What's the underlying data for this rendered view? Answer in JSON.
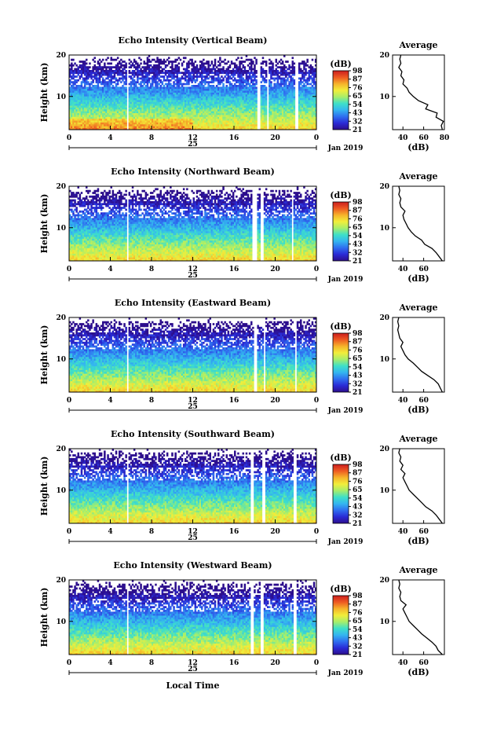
{
  "chart_data": [
    {
      "type": "heatmap",
      "title": "Echo Intensity (Vertical Beam)",
      "ylabel": "Height (km)",
      "xlabel": "",
      "xticks": [
        "0",
        "4",
        "8",
        "12",
        "16",
        "20",
        "0"
      ],
      "yticks": [
        "10",
        "20"
      ],
      "ylim": [
        2,
        20
      ],
      "xlim": [
        0,
        24
      ],
      "date_label": "25",
      "month_label": "Jan 2019",
      "colorbar": {
        "unit": "(dB)",
        "ticks": [
          "21",
          "32",
          "43",
          "54",
          "65",
          "76",
          "87",
          "98"
        ],
        "vmin": 21,
        "vmax": 98
      },
      "gaps_hours": [
        [
          5.6,
          5.8
        ],
        [
          18.3,
          18.6
        ],
        [
          19.2,
          19.4
        ],
        [
          21.9,
          22.2
        ]
      ],
      "average": {
        "title": "Average",
        "xlabel": "(dB)",
        "xticks": [
          "40",
          "60",
          "80"
        ],
        "xlim": [
          30,
          80
        ],
        "yticks": [
          "10",
          "20"
        ],
        "profile": [
          [
            78,
            2
          ],
          [
            77,
            3
          ],
          [
            79,
            4
          ],
          [
            72,
            5
          ],
          [
            73,
            6
          ],
          [
            62,
            7
          ],
          [
            64,
            8
          ],
          [
            55,
            9
          ],
          [
            50,
            10
          ],
          [
            46,
            11
          ],
          [
            44,
            12
          ],
          [
            40,
            13
          ],
          [
            41,
            14
          ],
          [
            38,
            15
          ],
          [
            39,
            16
          ],
          [
            36,
            17
          ],
          [
            38,
            18
          ],
          [
            37,
            19
          ],
          [
            38,
            20
          ]
        ]
      }
    },
    {
      "type": "heatmap",
      "title": "Echo Intensity (Northward Beam)",
      "ylabel": "Height (km)",
      "xlabel": "",
      "xticks": [
        "0",
        "4",
        "8",
        "12",
        "16",
        "20",
        "0"
      ],
      "yticks": [
        "10",
        "20"
      ],
      "ylim": [
        2,
        20
      ],
      "xlim": [
        0,
        24
      ],
      "date_label": "25",
      "month_label": "Jan 2019",
      "colorbar": {
        "unit": "(dB)",
        "ticks": [
          "21",
          "32",
          "43",
          "54",
          "65",
          "76",
          "87",
          "98"
        ],
        "vmin": 21,
        "vmax": 98
      },
      "gaps_hours": [
        [
          5.6,
          5.8
        ],
        [
          17.8,
          18.2
        ],
        [
          18.6,
          18.8
        ],
        [
          21.6,
          21.8
        ]
      ],
      "average": {
        "title": "Average",
        "xlabel": "(dB)",
        "xticks": [
          "40",
          "60"
        ],
        "xlim": [
          30,
          80
        ],
        "yticks": [
          "10",
          "20"
        ],
        "profile": [
          [
            78,
            2
          ],
          [
            75,
            3
          ],
          [
            72,
            4
          ],
          [
            68,
            5
          ],
          [
            61,
            6
          ],
          [
            58,
            7
          ],
          [
            52,
            8
          ],
          [
            48,
            9
          ],
          [
            45,
            10
          ],
          [
            43,
            11
          ],
          [
            41,
            12
          ],
          [
            40,
            13
          ],
          [
            42,
            14
          ],
          [
            38,
            15
          ],
          [
            37,
            16
          ],
          [
            38,
            17
          ],
          [
            36,
            18
          ],
          [
            37,
            19
          ],
          [
            36,
            20
          ]
        ]
      }
    },
    {
      "type": "heatmap",
      "title": "Echo Intensity (Eastward Beam)",
      "ylabel": "Height (km)",
      "xlabel": "",
      "xticks": [
        "0",
        "4",
        "8",
        "12",
        "16",
        "20",
        "0"
      ],
      "yticks": [
        "10",
        "20"
      ],
      "ylim": [
        2,
        20
      ],
      "xlim": [
        0,
        24
      ],
      "date_label": "25",
      "month_label": "Jan 2019",
      "colorbar": {
        "unit": "(dB)",
        "ticks": [
          "21",
          "32",
          "43",
          "54",
          "65",
          "76",
          "87",
          "98"
        ],
        "vmin": 21,
        "vmax": 98
      },
      "gaps_hours": [
        [
          5.6,
          5.8
        ],
        [
          18.0,
          18.3
        ],
        [
          18.9,
          19.1
        ],
        [
          21.9,
          22.1
        ]
      ],
      "average": {
        "title": "Average",
        "xlabel": "(dB)",
        "xticks": [
          "40",
          "60"
        ],
        "xlim": [
          30,
          80
        ],
        "yticks": [
          "10",
          "20"
        ],
        "profile": [
          [
            78,
            2
          ],
          [
            76,
            3
          ],
          [
            74,
            4
          ],
          [
            70,
            5
          ],
          [
            64,
            6
          ],
          [
            58,
            7
          ],
          [
            54,
            8
          ],
          [
            50,
            9
          ],
          [
            45,
            10
          ],
          [
            42,
            11
          ],
          [
            40,
            12
          ],
          [
            38,
            13
          ],
          [
            40,
            14
          ],
          [
            37,
            15
          ],
          [
            36,
            16
          ],
          [
            35,
            17
          ],
          [
            36,
            18
          ],
          [
            35,
            19
          ],
          [
            36,
            20
          ]
        ]
      }
    },
    {
      "type": "heatmap",
      "title": "Echo Intensity (Southward Beam)",
      "ylabel": "Height (km)",
      "xlabel": "",
      "xticks": [
        "0",
        "4",
        "8",
        "12",
        "16",
        "20",
        "0"
      ],
      "yticks": [
        "10",
        "20"
      ],
      "ylim": [
        2,
        20
      ],
      "xlim": [
        0,
        24
      ],
      "date_label": "25",
      "month_label": "Jan 2019",
      "colorbar": {
        "unit": "(dB)",
        "ticks": [
          "21",
          "32",
          "43",
          "54",
          "65",
          "76",
          "87",
          "98"
        ],
        "vmin": 21,
        "vmax": 98
      },
      "gaps_hours": [
        [
          5.6,
          5.8
        ],
        [
          17.6,
          17.9
        ],
        [
          18.8,
          19.0
        ],
        [
          21.8,
          22.1
        ]
      ],
      "average": {
        "title": "Average",
        "xlabel": "(dB)",
        "xticks": [
          "40",
          "60"
        ],
        "xlim": [
          30,
          80
        ],
        "yticks": [
          "10",
          "20"
        ],
        "profile": [
          [
            78,
            2
          ],
          [
            75,
            3
          ],
          [
            72,
            4
          ],
          [
            68,
            5
          ],
          [
            62,
            6
          ],
          [
            58,
            7
          ],
          [
            54,
            8
          ],
          [
            50,
            9
          ],
          [
            46,
            10
          ],
          [
            44,
            11
          ],
          [
            42,
            12
          ],
          [
            40,
            13
          ],
          [
            42,
            14
          ],
          [
            38,
            15
          ],
          [
            40,
            16
          ],
          [
            37,
            17
          ],
          [
            38,
            18
          ],
          [
            36,
            19
          ],
          [
            37,
            20
          ]
        ]
      }
    },
    {
      "type": "heatmap",
      "title": "Echo Intensity (Westward Beam)",
      "ylabel": "Height (km)",
      "xlabel": "Local Time",
      "xticks": [
        "0",
        "4",
        "8",
        "12",
        "16",
        "20",
        "0"
      ],
      "yticks": [
        "10",
        "20"
      ],
      "ylim": [
        2,
        20
      ],
      "xlim": [
        0,
        24
      ],
      "date_label": "25",
      "month_label": "Jan 2019",
      "colorbar": {
        "unit": "(dB)",
        "ticks": [
          "21",
          "32",
          "43",
          "54",
          "65",
          "76",
          "87",
          "98"
        ],
        "vmin": 21,
        "vmax": 98
      },
      "gaps_hours": [
        [
          5.6,
          5.8
        ],
        [
          17.6,
          17.9
        ],
        [
          18.5,
          18.8
        ],
        [
          21.8,
          22.1
        ]
      ],
      "average": {
        "title": "Average",
        "xlabel": "(dB)",
        "xticks": [
          "40",
          "60"
        ],
        "xlim": [
          30,
          80
        ],
        "yticks": [
          "10",
          "20"
        ],
        "profile": [
          [
            78,
            2
          ],
          [
            74,
            3
          ],
          [
            72,
            4
          ],
          [
            68,
            5
          ],
          [
            63,
            6
          ],
          [
            58,
            7
          ],
          [
            54,
            8
          ],
          [
            50,
            9
          ],
          [
            46,
            10
          ],
          [
            44,
            11
          ],
          [
            42,
            12
          ],
          [
            40,
            13
          ],
          [
            43,
            14
          ],
          [
            38,
            15
          ],
          [
            37,
            16
          ],
          [
            38,
            17
          ],
          [
            36,
            18
          ],
          [
            37,
            19
          ],
          [
            36,
            20
          ]
        ]
      }
    }
  ],
  "colors": {
    "colormap": [
      "#2d0e8c",
      "#2a2ad6",
      "#2f6ff0",
      "#34b6f0",
      "#3ee0c8",
      "#a8ee6a",
      "#f2ee3a",
      "#f6b32a",
      "#ee5a22",
      "#cc1e1e"
    ],
    "axis": "#000000",
    "background": "#ffffff"
  }
}
